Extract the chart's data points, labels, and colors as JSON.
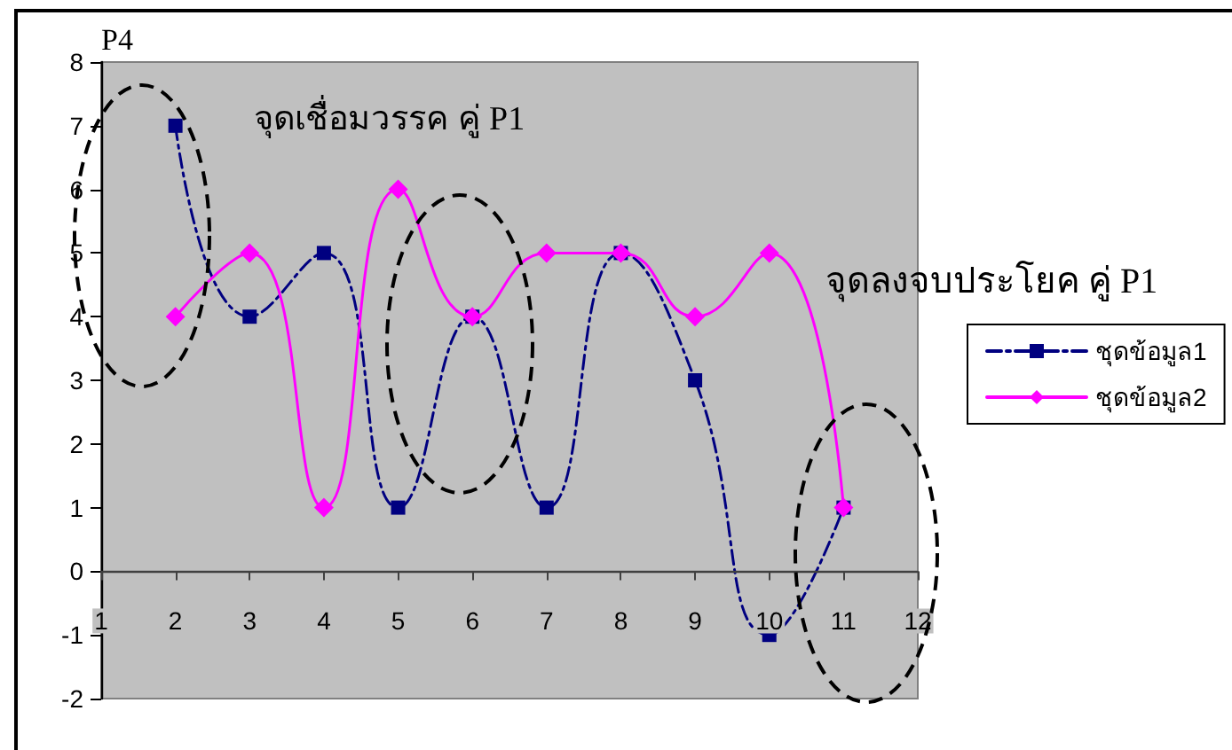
{
  "chart_data": {
    "type": "line",
    "ylabel": "P4",
    "annotations": [
      "จุดเชื่อมวรรค คู่ P1",
      "จุดลงจบประโยค คู่ P1"
    ],
    "x": [
      2,
      3,
      4,
      5,
      6,
      7,
      8,
      9,
      10,
      11
    ],
    "series": [
      {
        "name": "ชุดข้อมูล1",
        "color": "#000080",
        "values": [
          7,
          4,
          5,
          1,
          4,
          1,
          5,
          3,
          -1,
          1
        ],
        "marker": "square",
        "line_style": "dashed"
      },
      {
        "name": "ชุดข้อมูล2",
        "color": "#ff00ff",
        "values": [
          4,
          5,
          1,
          6,
          4,
          5,
          5,
          4,
          5,
          1
        ],
        "marker": "diamond",
        "line_style": "solid"
      }
    ],
    "xlim": [
      1,
      12
    ],
    "xticks": [
      1,
      2,
      3,
      4,
      5,
      6,
      7,
      8,
      9,
      10,
      11,
      12
    ],
    "ylim": [
      -2,
      8
    ],
    "yticks": [
      -2,
      -1,
      0,
      1,
      2,
      3,
      4,
      5,
      6,
      7,
      8
    ],
    "legend": "right"
  }
}
